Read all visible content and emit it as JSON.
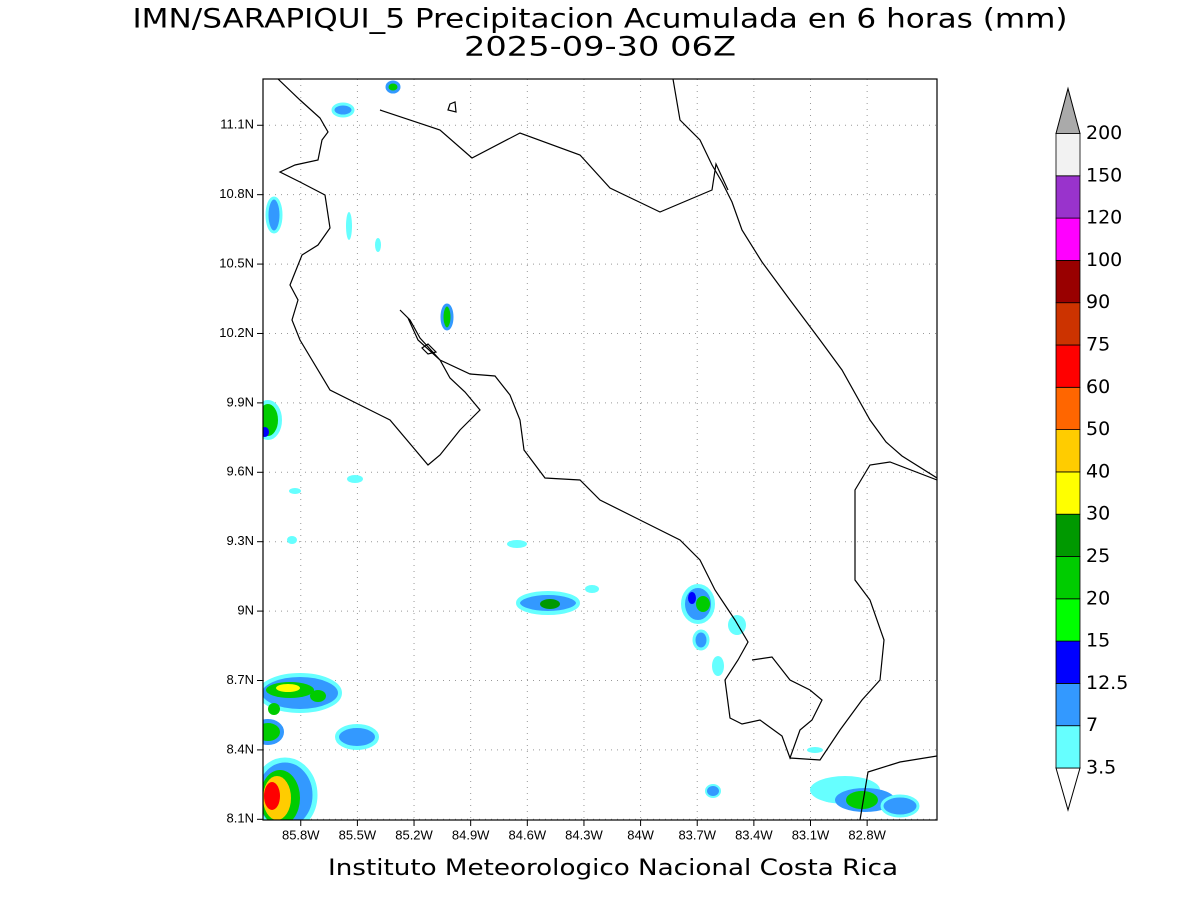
{
  "title": "IMN/SARAPIQUI_5 Precipitacion Acumulada en 6 horas (mm)",
  "subtitle": "2025-09-30 06Z",
  "footer": "Instituto Meteorologico Nacional Costa Rica",
  "map": {
    "xlim": [
      -86.0,
      -82.43
    ],
    "ylim": [
      8.097,
      11.3
    ],
    "grid": true,
    "xticks": [
      {
        "value": -85.8,
        "label": "85.8W"
      },
      {
        "value": -85.5,
        "label": "85.5W"
      },
      {
        "value": -85.2,
        "label": "85.2W"
      },
      {
        "value": -84.9,
        "label": "84.9W"
      },
      {
        "value": -84.6,
        "label": "84.6W"
      },
      {
        "value": -84.3,
        "label": "84.3W"
      },
      {
        "value": -84.0,
        "label": "84W"
      },
      {
        "value": -83.7,
        "label": "83.7W"
      },
      {
        "value": -83.4,
        "label": "83.4W"
      },
      {
        "value": -83.1,
        "label": "83.1W"
      },
      {
        "value": -82.8,
        "label": "82.8W"
      }
    ],
    "yticks": [
      {
        "value": 8.1,
        "label": "8.1N"
      },
      {
        "value": 8.4,
        "label": "8.4N"
      },
      {
        "value": 8.7,
        "label": "8.7N"
      },
      {
        "value": 9.0,
        "label": "9N"
      },
      {
        "value": 9.3,
        "label": "9.3N"
      },
      {
        "value": 9.6,
        "label": "9.6N"
      },
      {
        "value": 9.9,
        "label": "9.9N"
      },
      {
        "value": 10.2,
        "label": "10.2N"
      },
      {
        "value": 10.5,
        "label": "10.5N"
      },
      {
        "value": 10.8,
        "label": "10.8N"
      },
      {
        "value": 11.1,
        "label": "11.1N"
      }
    ]
  },
  "colorbar": {
    "levels": [
      3.5,
      7,
      12.5,
      15,
      20,
      25,
      30,
      40,
      50,
      60,
      75,
      90,
      100,
      120,
      150,
      200
    ],
    "colors": [
      "#66ffff",
      "#3399ff",
      "#0000ff",
      "#00ff00",
      "#00cc00",
      "#009900",
      "#ffff00",
      "#ffcc00",
      "#ff6600",
      "#ff0000",
      "#cc3300",
      "#990000",
      "#ff00ff",
      "#9933cc",
      "#f2f2f2"
    ],
    "under_color": "#ffffff",
    "over_color": "#aaaaaa"
  }
}
